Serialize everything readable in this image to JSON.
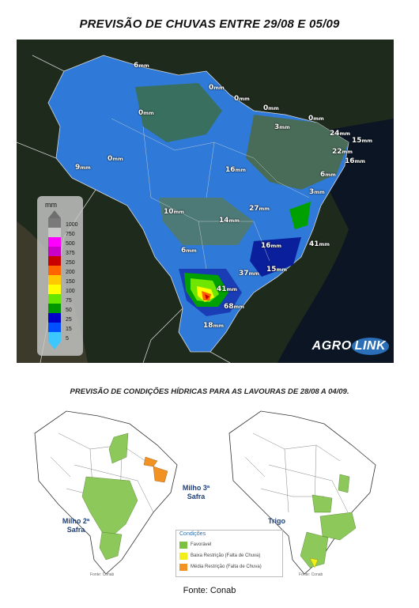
{
  "title": "PREVISÃO DE CHUVAS ENTRE 29/08 E 05/09",
  "rain_labels": [
    {
      "value": "6",
      "unit": "mm"
    },
    {
      "value": "0",
      "unit": "mm"
    },
    {
      "value": "0",
      "unit": "mm"
    },
    {
      "value": "0",
      "unit": "mm"
    },
    {
      "value": "0",
      "unit": "mm"
    },
    {
      "value": "3",
      "unit": "mm"
    },
    {
      "value": "0",
      "unit": "mm"
    },
    {
      "value": "24",
      "unit": "mm"
    },
    {
      "value": "15",
      "unit": "mm"
    },
    {
      "value": "22",
      "unit": "mm"
    },
    {
      "value": "16",
      "unit": "mm"
    },
    {
      "value": "9",
      "unit": "mm"
    },
    {
      "value": "0",
      "unit": "mm"
    },
    {
      "value": "16",
      "unit": "mm"
    },
    {
      "value": "6",
      "unit": "mm"
    },
    {
      "value": "3",
      "unit": "mm"
    },
    {
      "value": "10",
      "unit": "mm"
    },
    {
      "value": "14",
      "unit": "mm"
    },
    {
      "value": "27",
      "unit": "mm"
    },
    {
      "value": "41",
      "unit": "mm"
    },
    {
      "value": "6",
      "unit": "mm"
    },
    {
      "value": "16",
      "unit": "mm"
    },
    {
      "value": "37",
      "unit": "mm"
    },
    {
      "value": "15",
      "unit": "mm"
    },
    {
      "value": "41",
      "unit": "mm"
    },
    {
      "value": "68",
      "unit": "mm"
    },
    {
      "value": "18",
      "unit": "mm"
    }
  ],
  "legend": {
    "unit": "mm",
    "items": [
      {
        "label": "1000",
        "color": "#7a7a7a"
      },
      {
        "label": "750",
        "color": "#c8c8c8"
      },
      {
        "label": "500",
        "color": "#ff00ff"
      },
      {
        "label": "375",
        "color": "#c800c8"
      },
      {
        "label": "250",
        "color": "#c80000"
      },
      {
        "label": "200",
        "color": "#ff6400"
      },
      {
        "label": "150",
        "color": "#ffc800"
      },
      {
        "label": "100",
        "color": "#ffff00"
      },
      {
        "label": "75",
        "color": "#64e600"
      },
      {
        "label": "50",
        "color": "#009600"
      },
      {
        "label": "25",
        "color": "#0000c8"
      },
      {
        "label": "15",
        "color": "#0050ff"
      },
      {
        "label": "5",
        "color": "#3cc8ff"
      }
    ]
  },
  "logo": {
    "part1": "AGRO",
    "part2": "LINK"
  },
  "subtitle": "PREVISÃO DE CONDIÇÕES HÍDRICAS PARA AS LAVOURAS DE 28/08 A 04/09.",
  "maps": [
    {
      "caption_line1": "Milho 2ª",
      "caption_line2": "Safra",
      "source": "Fonte: Conab"
    },
    {
      "caption_line1": "Milho 3ª",
      "caption_line2": "Safra"
    },
    {
      "caption_line1": "Trigo",
      "source": "Fonte: Conab"
    }
  ],
  "conditions": {
    "title": "Condições",
    "items": [
      {
        "label": "Favorável",
        "color": "#7cc142"
      },
      {
        "label": "Baixa Restrição (Falta de Chuva)",
        "color": "#f2ee1a"
      },
      {
        "label": "Média Restrição (Falta de Chuva)",
        "color": "#f29222"
      }
    ]
  },
  "footer": "Fonte: Conab"
}
